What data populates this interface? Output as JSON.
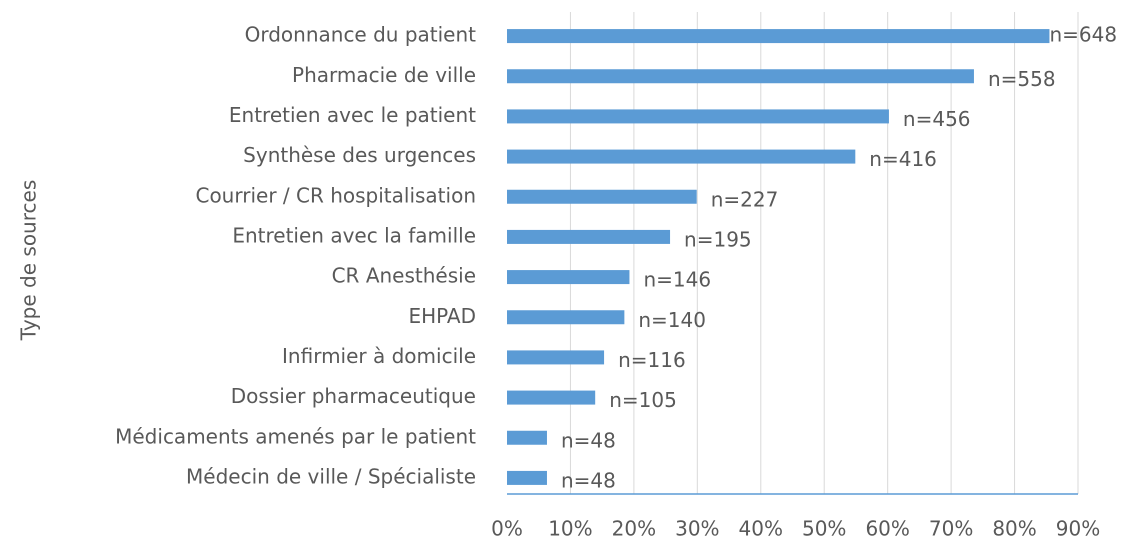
{
  "chart_data": {
    "type": "bar",
    "orientation": "horizontal",
    "y_label": "Type de sources",
    "categories": [
      "Ordonnance du patient",
      "Pharmacie de ville",
      "Entretien avec le patient",
      "Synthèse des urgences",
      "Courrier / CR hospitalisation",
      "Entretien avec la famille",
      "CR Anesthésie",
      "EHPAD",
      "Infirmier à domicile",
      "Dossier pharmaceutique",
      "Médicaments amenés par le patient",
      "Médecin de ville / Spécialiste"
    ],
    "values": [
      85.5,
      73.6,
      60.2,
      54.9,
      29.9,
      25.7,
      19.3,
      18.5,
      15.3,
      13.9,
      6.3,
      6.3
    ],
    "count_labels": [
      "n=648",
      "n=558",
      "n=456",
      "n=416",
      "n=227",
      "n=195",
      "n=146",
      "n=140",
      "n=116",
      "n=105",
      "n=48",
      "n=48"
    ],
    "color": "#5b9bd5",
    "xlim": [
      0,
      90
    ],
    "xticks": [
      {
        "value": 0,
        "label": "0%"
      },
      {
        "value": 10,
        "label": "10%"
      },
      {
        "value": 20,
        "label": "20%"
      },
      {
        "value": 30,
        "label": "30%"
      },
      {
        "value": 40,
        "label": "40%"
      },
      {
        "value": 50,
        "label": "50%"
      },
      {
        "value": 60,
        "label": "60%"
      },
      {
        "value": 70,
        "label": "70%"
      },
      {
        "value": 80,
        "label": "80%"
      },
      {
        "value": 90,
        "label": "90%"
      }
    ],
    "grid": true
  }
}
